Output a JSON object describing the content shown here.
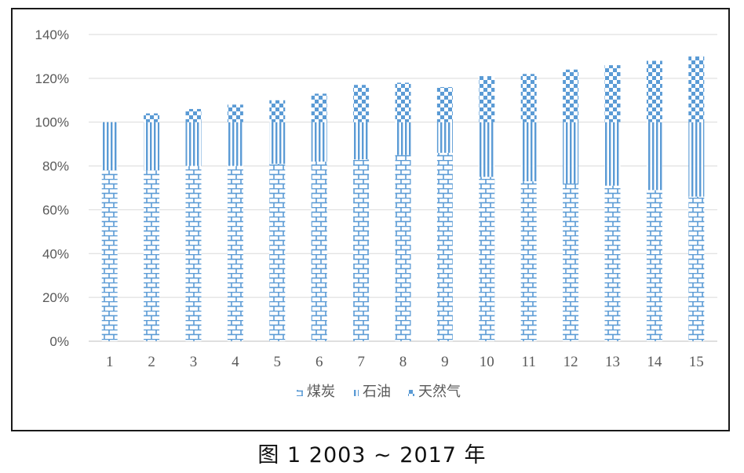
{
  "caption": "图 1   2003 ~ 2017 年",
  "chart_data": {
    "type": "bar",
    "stacked": true,
    "categories": [
      "1",
      "2",
      "3",
      "4",
      "5",
      "6",
      "7",
      "8",
      "9",
      "10",
      "11",
      "12",
      "13",
      "14",
      "15"
    ],
    "series": [
      {
        "name": "煤炭",
        "pattern": "brick",
        "values": [
          78,
          78,
          80,
          80,
          81,
          82,
          83,
          85,
          86,
          75,
          73,
          72,
          71,
          69,
          66
        ]
      },
      {
        "name": "石油",
        "pattern": "vertical-lines",
        "values": [
          22,
          22,
          20,
          20,
          19,
          18,
          17,
          15,
          14,
          25,
          27,
          28,
          29,
          31,
          34
        ]
      },
      {
        "name": "天然气",
        "pattern": "checker",
        "values": [
          0,
          4,
          6,
          8,
          10,
          13,
          17,
          18,
          16,
          21,
          22,
          24,
          26,
          28,
          30
        ]
      }
    ],
    "ylim": [
      0,
      140
    ],
    "yticks": [
      "0%",
      "20%",
      "40%",
      "60%",
      "80%",
      "100%",
      "120%",
      "140%"
    ],
    "ytick_values": [
      0,
      20,
      40,
      60,
      80,
      100,
      120,
      140
    ],
    "grid": true,
    "legend_position": "bottom",
    "color": "#5b9bd5"
  }
}
